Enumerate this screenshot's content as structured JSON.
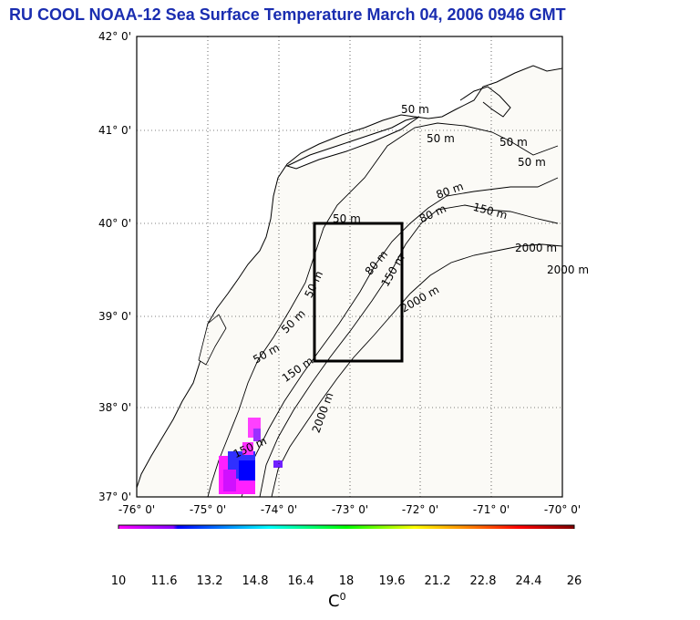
{
  "title": "RU COOL  NOAA-12 Sea Surface Temperature March 04, 2006 0946 GMT",
  "map": {
    "lat_labels": [
      "42° 0'",
      "41° 0'",
      "40° 0'",
      "39° 0'",
      "38° 0'",
      "37° 0'"
    ],
    "lon_labels": [
      "-76° 0'",
      "-75° 0'",
      "-74° 0'",
      "-73° 0'",
      "-72° 0'",
      "-71° 0'",
      "-70° 0'"
    ],
    "lat_range": [
      37,
      42
    ],
    "lon_range": [
      -76,
      -70
    ],
    "grid": "dotted",
    "study_box": {
      "lon": [
        -73.5,
        -72.5
      ],
      "lat": [
        38.5,
        40.0
      ]
    },
    "contour_labels": [
      "50 m",
      "50 m",
      "50 m",
      "50 m",
      "50 m",
      "50 m",
      "50 m",
      "50 m",
      "80 m",
      "80 m",
      "80 m",
      "150 m",
      "150 m",
      "150 m",
      "150 m",
      "2000 m",
      "2000 m",
      "2000 m",
      "2000 m"
    ]
  },
  "colorbar": {
    "ticks": [
      "10",
      "11.6",
      "13.2",
      "14.8",
      "16.4",
      "18",
      "19.6",
      "21.2",
      "22.8",
      "24.4",
      "26"
    ],
    "unit_base": "C",
    "unit_sup": "0",
    "colors": [
      "#ff00ff",
      "#0000ff",
      "#00ffff",
      "#00ff00",
      "#ffff00",
      "#ff0000",
      "#800000"
    ]
  }
}
